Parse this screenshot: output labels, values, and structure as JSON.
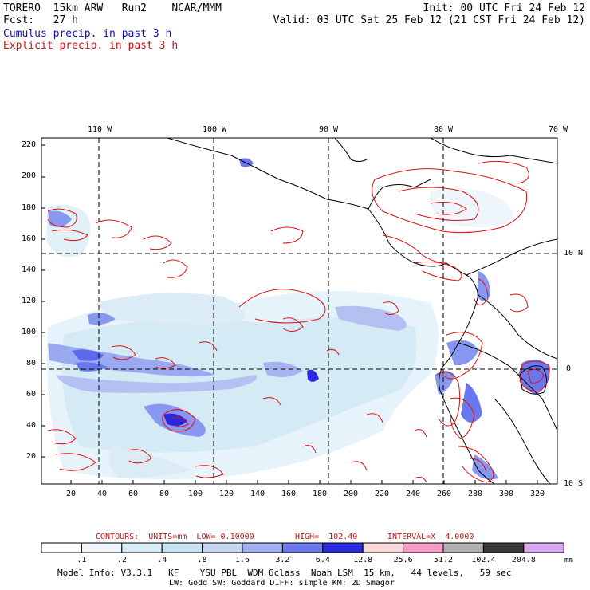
{
  "header": {
    "line1_left": "TORERO  15km ARW   Run2    NCAR/MMM",
    "line1_right": "Init: 00 UTC Fri 24 Feb 12",
    "line2_left": "Fcst:   27 h",
    "line2_right": "Valid: 03 UTC Sat 25 Feb 12 (21 CST Fri 24 Feb 12)",
    "legend_cumulus": "Cumulus precip. in past 3 h",
    "legend_explicit": "Explicit precip. in past 3 h"
  },
  "map": {
    "top_lon_labels": [
      "110 W",
      "100 W",
      "90 W",
      "80 W",
      "70 W"
    ],
    "right_lat_labels": [
      "10 N",
      "0",
      "10 S"
    ],
    "y_ticks": [
      "220",
      "200",
      "180",
      "160",
      "140",
      "120",
      "100",
      "80",
      "60",
      "40",
      "20"
    ],
    "x_ticks": [
      "20",
      "40",
      "60",
      "80",
      "100",
      "120",
      "140",
      "160",
      "180",
      "200",
      "220",
      "240",
      "260",
      "280",
      "300",
      "320"
    ]
  },
  "contour_info": {
    "contours": "CONTOURS:  UNITS=mm  LOW= 0.10000",
    "high": "HIGH=  102.40",
    "interval": "INTERVAL=X  4.0000"
  },
  "colorbar": {
    "labels": [
      ".1",
      ".2",
      ".4",
      ".8",
      "1.6",
      "3.2",
      "6.4",
      "12.8",
      "25.6",
      "51.2",
      "102.4",
      "204.8"
    ],
    "units": "mm",
    "colors": [
      "#ffffff",
      "#eef6fb",
      "#d8ecf6",
      "#c4e2f0",
      "#c6d6f2",
      "#a0b0f0",
      "#6a78ee",
      "#2828e0",
      "#f8d8d8",
      "#f49ac4",
      "#b0b0b0",
      "#383838",
      "#d8a8f0"
    ]
  },
  "footer": {
    "line1": "Model Info: V3.3.1   KF    YSU PBL  WDM 6class  Noah LSM  15 km,   44 levels,   59 sec",
    "line2": "LW: Godd SW: Goddard DIFF: simple KM: 2D Smagor"
  }
}
